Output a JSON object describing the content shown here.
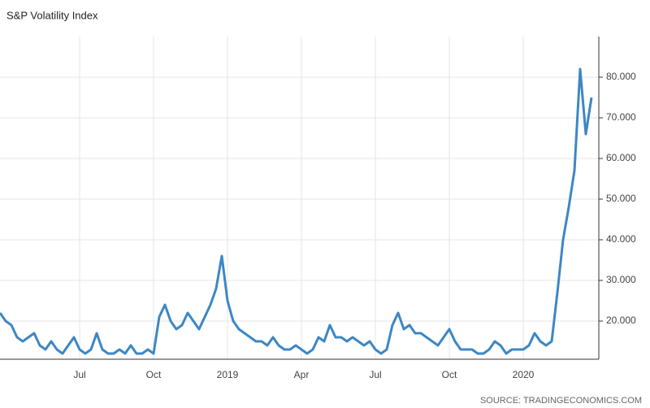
{
  "chart_data": {
    "type": "line",
    "title": "S&P Volatility Index",
    "source": "SOURCE: TRADINGECONOMICS.COM",
    "categories": [
      null,
      null,
      null,
      null,
      null,
      null,
      null,
      null,
      null,
      null,
      null,
      null,
      null,
      null,
      "Jul",
      null,
      null,
      null,
      null,
      null,
      null,
      null,
      null,
      null,
      null,
      null,
      null,
      "Oct",
      null,
      null,
      null,
      null,
      null,
      null,
      null,
      null,
      null,
      null,
      null,
      null,
      "2019",
      null,
      null,
      null,
      null,
      null,
      null,
      null,
      null,
      null,
      null,
      null,
      null,
      "Apr",
      null,
      null,
      null,
      null,
      null,
      null,
      null,
      null,
      null,
      null,
      null,
      null,
      "Jul",
      null,
      null,
      null,
      null,
      null,
      null,
      null,
      null,
      null,
      null,
      null,
      null,
      "Oct",
      null,
      null,
      null,
      null,
      null,
      null,
      null,
      null,
      null,
      null,
      null,
      null,
      "2020",
      null,
      null,
      null,
      null,
      null,
      null,
      null,
      null,
      null,
      null,
      null,
      null
    ],
    "series": [
      {
        "name": "S&P Volatility Index",
        "color": "#3d87c4",
        "values": [
          22,
          20,
          19,
          16,
          15,
          16,
          17,
          14,
          13,
          15,
          13,
          12,
          14,
          16,
          13,
          12,
          13,
          17,
          13,
          12,
          12,
          13,
          12,
          14,
          12,
          12,
          13,
          12,
          21,
          24,
          20,
          18,
          19,
          22,
          20,
          18,
          21,
          24,
          28,
          36,
          25,
          20,
          18,
          17,
          16,
          15,
          15,
          14,
          16,
          14,
          13,
          13,
          14,
          13,
          12,
          13,
          16,
          15,
          19,
          16,
          16,
          15,
          16,
          15,
          14,
          15,
          13,
          12,
          13,
          19,
          22,
          18,
          19,
          17,
          17,
          16,
          15,
          14,
          16,
          18,
          15,
          13,
          13,
          13,
          12,
          12,
          13,
          15,
          14,
          12,
          13,
          13,
          13,
          14,
          17,
          15,
          14,
          15,
          27,
          40,
          48,
          57,
          82,
          66,
          75
        ]
      }
    ],
    "ylim": [
      10.6,
      90
    ],
    "yticks": [
      {
        "value": 20,
        "label": "20.000"
      },
      {
        "value": 30,
        "label": "30.000"
      },
      {
        "value": 40,
        "label": "40.000"
      },
      {
        "value": 50,
        "label": "50.000"
      },
      {
        "value": 60,
        "label": "60.000"
      },
      {
        "value": 70,
        "label": "70.000"
      },
      {
        "value": 80,
        "label": "80.000"
      }
    ],
    "grid": true
  }
}
